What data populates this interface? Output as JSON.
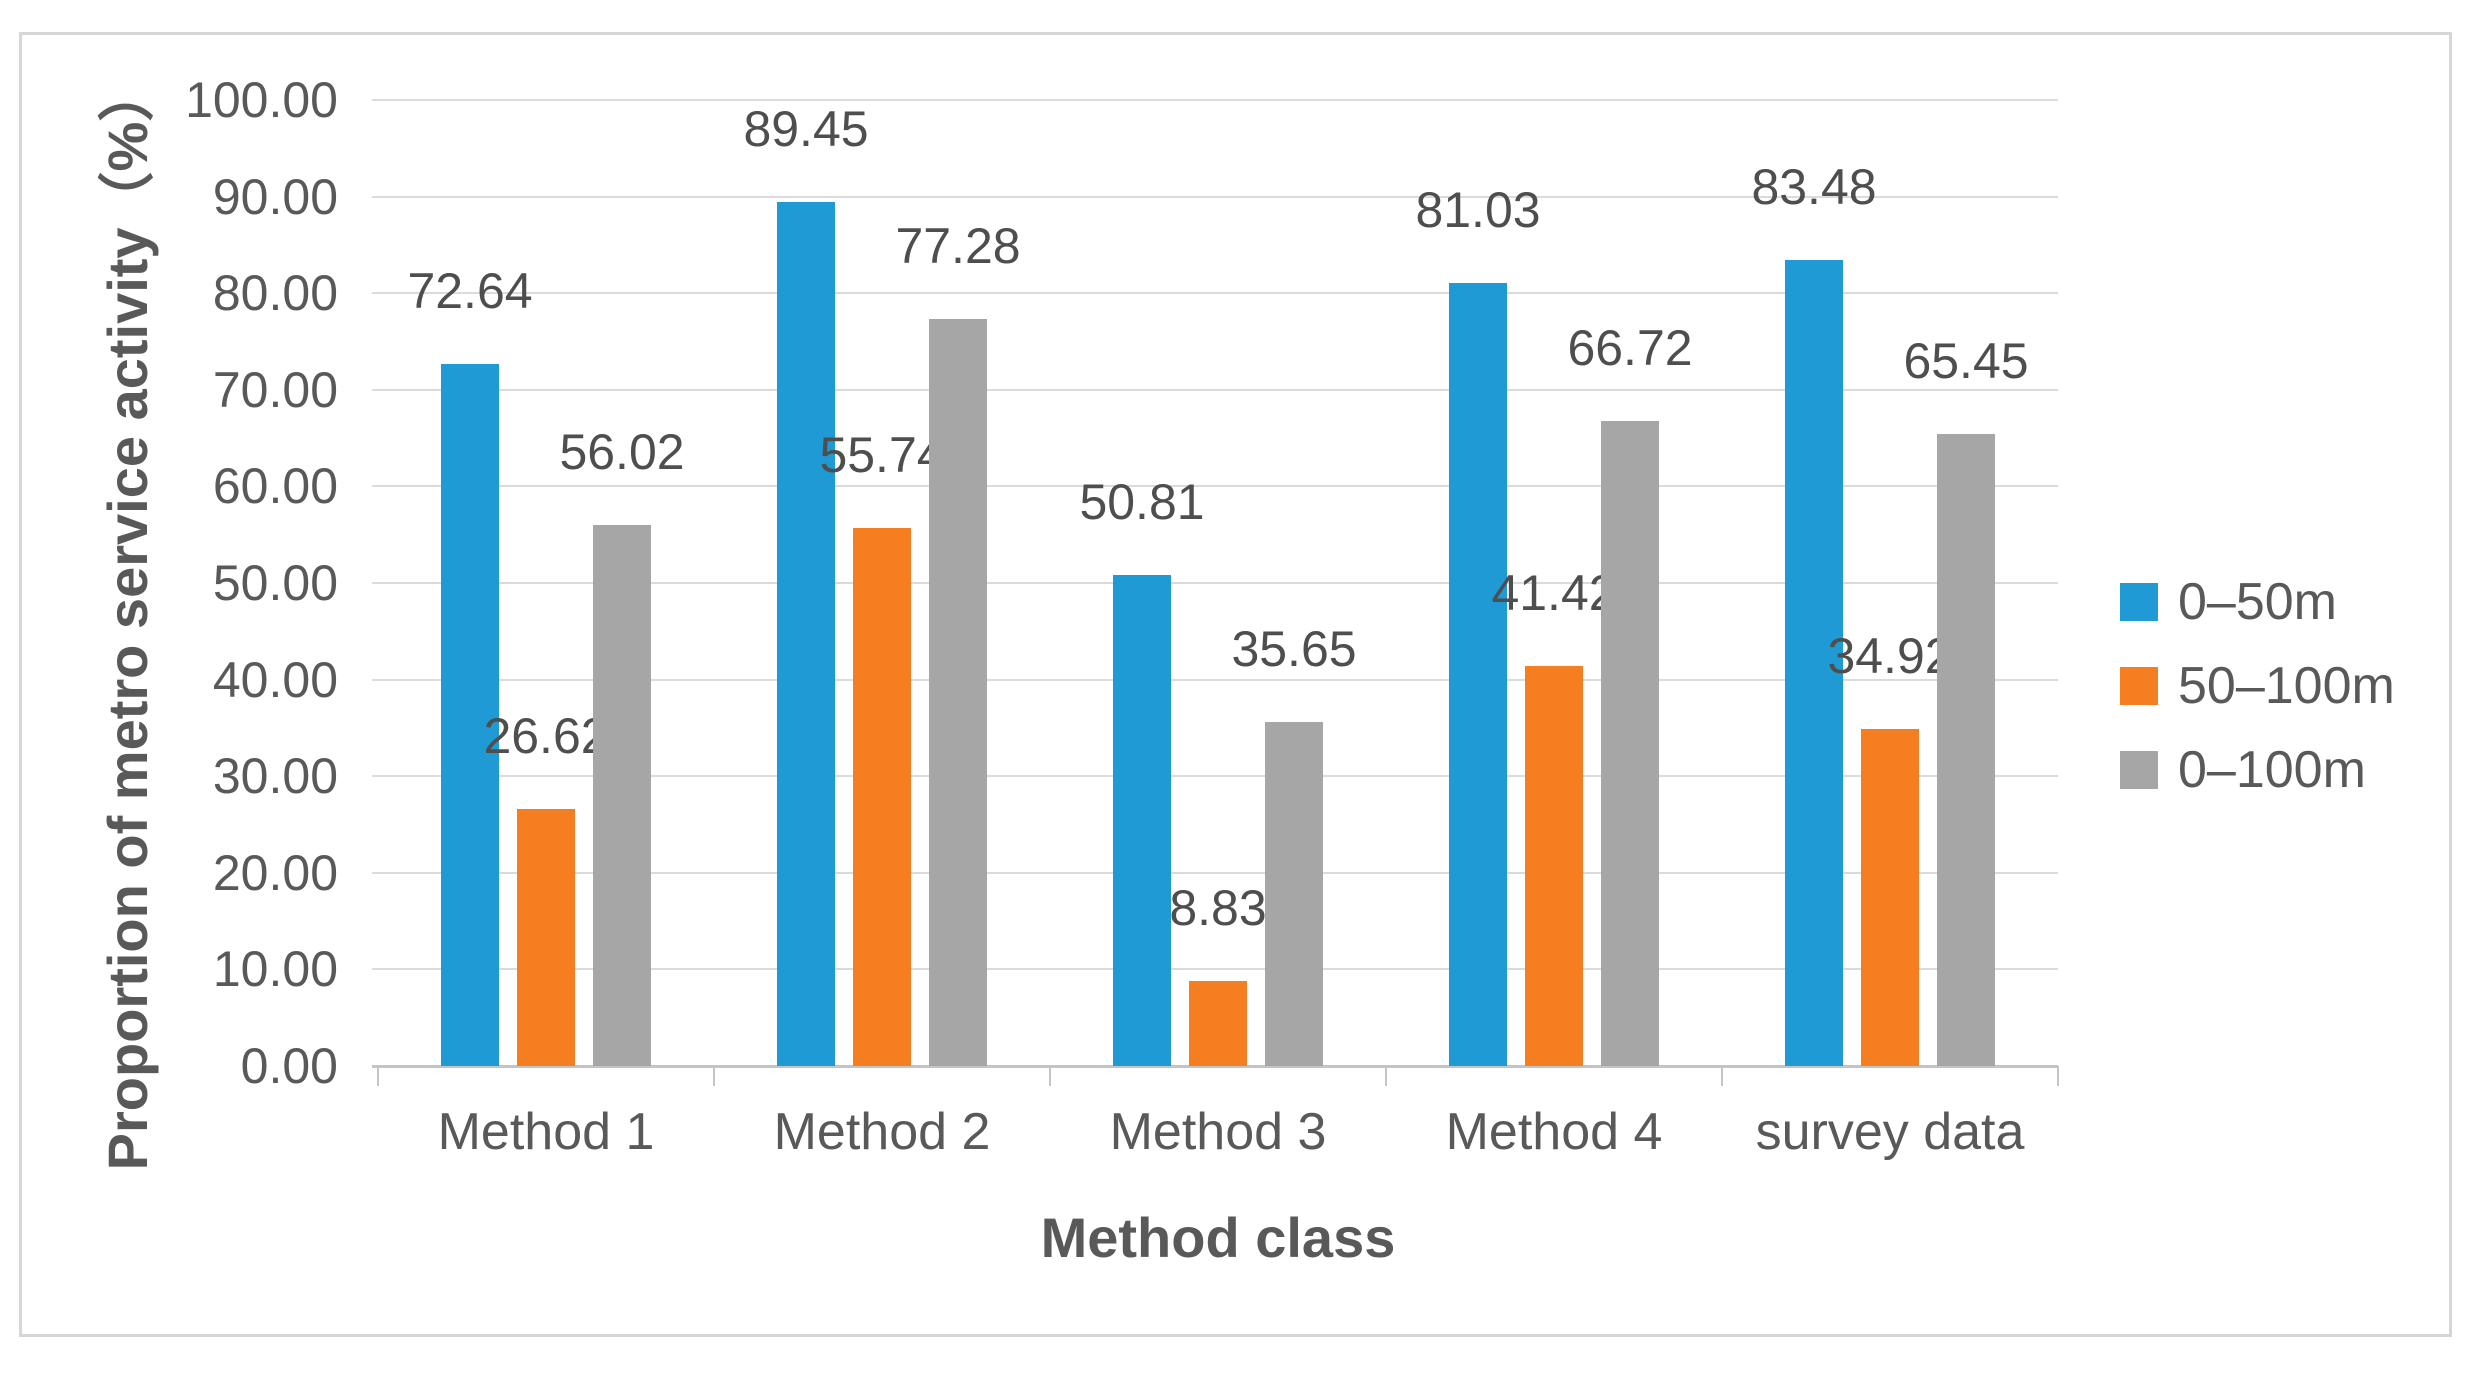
{
  "chart_data": {
    "type": "bar",
    "categories": [
      "Method 1",
      "Method 2",
      "Method 3",
      "Method 4",
      "survey data"
    ],
    "series": [
      {
        "name": "0–50m",
        "color": "#1F9AD5",
        "values": [
          72.64,
          89.45,
          50.81,
          81.03,
          83.48
        ]
      },
      {
        "name": "50–100m",
        "color": "#F57E20",
        "values": [
          26.62,
          55.74,
          8.83,
          41.42,
          34.92
        ]
      },
      {
        "name": "0–100m",
        "color": "#A6A6A6",
        "values": [
          56.02,
          77.28,
          35.65,
          66.72,
          65.45
        ]
      }
    ],
    "data_labels": [
      [
        "72.64",
        "89.45",
        "50.81",
        "81.03",
        "83.48"
      ],
      [
        "26.62",
        "55.74",
        "8.83",
        "41.42",
        "34.92"
      ],
      [
        "56.02",
        "77.28",
        "35.65",
        "66.72",
        "65.45"
      ]
    ],
    "title": "",
    "xlabel": "Method class",
    "ylabel": "Proportion of metro service activity（%）",
    "ylim": [
      0,
      100
    ],
    "ytick_step": 10,
    "ytick_labels": [
      "0.00",
      "10.00",
      "20.00",
      "30.00",
      "40.00",
      "50.00",
      "60.00",
      "70.00",
      "80.00",
      "90.00",
      "100.00"
    ],
    "grid": true,
    "legend_position": "right"
  },
  "style": {
    "gridline_color": "#DBDBDB",
    "axis_line_color": "#C4C4C4",
    "frame_border_color": "#D6D6D6",
    "text_color": "#595959",
    "background": "#FFFFFF"
  }
}
